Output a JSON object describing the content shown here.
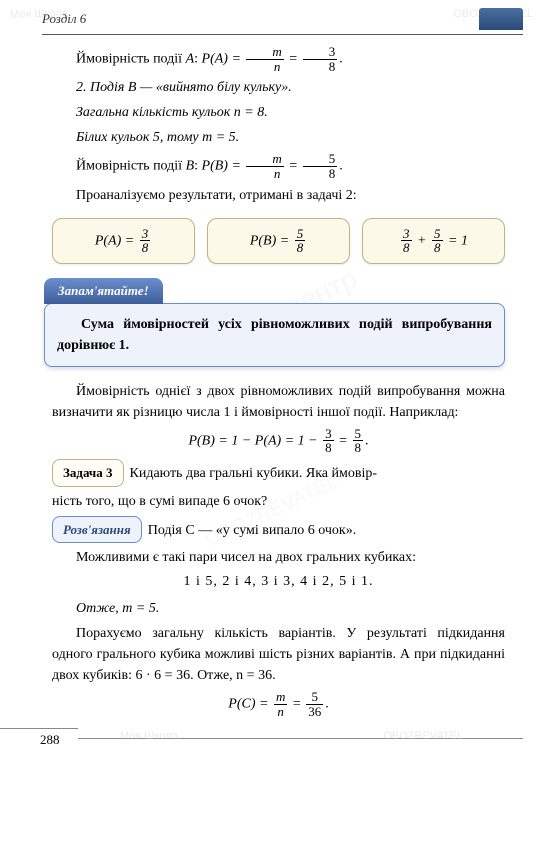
{
  "chapter_label": "Розділ 6",
  "page_number": "288",
  "watermarks": {
    "w1": "Моя Школа",
    "w2": "OBOZREVATEL",
    "center": "освітній центр",
    "center2": "OBOZREVATEL"
  },
  "body": {
    "prob_A_prefix": "Ймовірність події ",
    "prob_A_event": "A",
    "prob_A_mid": ":  ",
    "prob_A_expr_left": "P(A) = ",
    "frac_m": "m",
    "frac_n": "n",
    "equals": " = ",
    "frac_3": "3",
    "frac_8": "8",
    "period": ".",
    "line2": "2. Подія B — «вийнято білу кульку».",
    "line3": "Загальна кількість кульок n = 8.",
    "line4": "Білих кульок 5, тому m = 5.",
    "prob_B_prefix": "Ймовірність події ",
    "prob_B_event": "B",
    "prob_B_expr_left": "P(B) = ",
    "frac_5": "5",
    "analyze": "Проаналізуємо результати, отримані в задачі 2:",
    "box1_lhs": "P(A) = ",
    "box2_lhs": "P(B) = ",
    "box3_plus": " + ",
    "box3_eq1": " = 1",
    "remember_tab": "Запам'ятайте!",
    "rule_text": "Сума ймовірностей усіх рівноможливих подій випробування дорівнює 1.",
    "para_diff": "Ймовірність однієї з двох рівноможливих подій випробування можна визначити як різницю числа 1 і ймовірності іншої події. Наприклад:",
    "diff_formula_left": "P(B) = 1 − P(A) = 1 − ",
    "task3_tab": "Задача 3",
    "task3_text_a": "Кидають два гральні кубики. Яка ймовір-",
    "task3_text_b": "ність того, що в сумі випаде 6 очок?",
    "solve_tab": "Розв'язання",
    "solve_line1": "Подія C — «у сумі випало 6 очок».",
    "solve_line2": "Можливими є такі пари чисел на двох гральних кубиках:",
    "pairs": "1 і 5,    2 і 4,    3 і 3,    4 і 2,    5 і 1.",
    "hence_m": "Отже, m = 5.",
    "count_para": "Порахуємо загальну кількість варіантів. У результаті підкидання одного грального кубика можливі шість різних варіантів. А при підкиданні двох кубиків: 6 · 6 = 36. Отже, n = 36.",
    "prob_C_expr_left": "P(C) = ",
    "frac_36": "36"
  },
  "colors": {
    "header_tab_top": "#4a6ea0",
    "header_tab_bottom": "#2b4a7a",
    "calc_box_bg": "#fdf9e8",
    "calc_box_border": "#c2b37f",
    "rule_box_bg": "#eef2fb",
    "rule_box_border": "#6a8fce"
  }
}
